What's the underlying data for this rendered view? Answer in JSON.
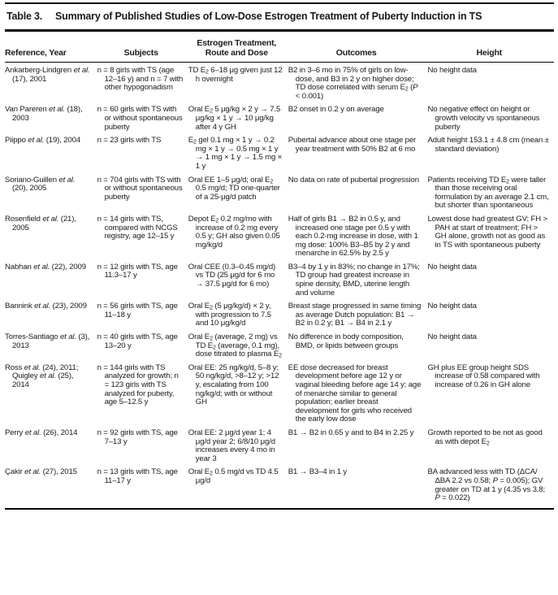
{
  "table": {
    "title_label": "Table 3.",
    "title_text": "Summary of Published Studies of Low-Dose Estrogen Treatment of Puberty Induction in TS",
    "columns": [
      "Reference, Year",
      "Subjects",
      "Estrogen Treatment, Route and Dose",
      "Outcomes",
      "Height"
    ],
    "rows": [
      {
        "reference": "Ankarberg-Lindgren <i>et al.</i> (17), 2001",
        "subjects": "n = 8 girls with TS (age 12–16 y) and n = 7 with other hypogonadism",
        "treatment": "TD E<sub>2</sub> 6–18 μg given just 12 h overnight",
        "outcomes": "B2 in 3–6 mo in 75% of girls on low-dose, and B3 in 2 y on higher dose; TD dose correlated with serum E<sub>2</sub> (<i>P</i> &lt; 0.001)",
        "height": "No height data"
      },
      {
        "reference": "Van Pareren <i>et al.</i> (18), 2003",
        "subjects": "n = 60 girls with TS with or without spontaneous puberty",
        "treatment": "Oral E<sub>2</sub> 5 μg/kg × 2 y → 7.5 μg/kg × 1 y → 10 μg/kg after 4 y GH",
        "outcomes": "B2 onset in 0.2 y on average",
        "height": "No negative effect on height or growth velocity vs spontaneous puberty"
      },
      {
        "reference": "Piippo <i>et al.</i> (19), 2004",
        "subjects": "n = 23 girls with TS",
        "treatment": "E<sub>2</sub> gel 0.1 mg × 1 y → 0.2 mg × 1 y → 0.5 mg × 1 y → 1 mg × 1 y → 1.5 mg × 1 y",
        "outcomes": "Pubertal advance about one stage per year treatment with 50% B2 at 6 mo",
        "height": "Adult height 153.1 ± 4.8 cm (mean ± standard deviation)"
      },
      {
        "reference": "Soriano-Guillen <i>et al.</i> (20), 2005",
        "subjects": "n = 704 girls with TS with or without spontaneous puberty",
        "treatment": "Oral EE 1–5 μg/d; oral E<sub>2</sub> 0.5 mg/d; TD one-quarter of a 25-μg/d patch",
        "outcomes": "No data on rate of pubertal progression",
        "height": "Patients receiving TD E<sub>2</sub> were taller than those receiving oral formulation by an average 2.1 cm, but shorter than spontaneous"
      },
      {
        "reference": "Rosenfield <i>et al.</i> (21), 2005",
        "subjects": "n = 14 girls with TS, compared with NCGS registry, age 12–15 y",
        "treatment": "Depot E<sub>2</sub> 0.2 mg/mo with increase of 0.2 mg every 0.5 y; GH also given 0.05 mg/kg/d",
        "outcomes": "Half of girls B1 → B2 in 0.5 y, and increased one stage per 0.5 y with each 0.2-mg increase in dose, with 1 mg dose: 100% B3–B5 by 2 y and menarche in 62.5% by 2.5 y",
        "height": "Lowest dose had greatest GV; FH &gt; PAH at start of treatment; FH &gt; GH alone, growth not as good as in TS with spontaneous puberty"
      },
      {
        "reference": "Nabhan <i>et al.</i> (22), 2009",
        "subjects": "n = 12 girls with TS, age 11.3–17 y",
        "treatment": "Oral CEE (0.3–0.45 mg/d) vs TD (25 μg/d for 6 mo → 37.5 μg/d for 6 mo)",
        "outcomes": "B3–4 by 1 y in 83%; no change in 17%; TD group had greatest increase in spine density, BMD, uterine length and volume",
        "height": "No height data"
      },
      {
        "reference": "Bannink <i>et al.</i> (23), 2009",
        "subjects": "n = 56 girls with TS, age 11–18 y",
        "treatment": "Oral E<sub>2</sub> (5 μg/kg/d) × 2 y, with progression to 7.5 and 10 μg/kg/d",
        "outcomes": "Breast stage progressed in same timing as average Dutch population: B1 → B2 in 0.2 y; B1 → B4 in 2.1 y",
        "height": "No height data"
      },
      {
        "reference": "Torres-Santiago <i>et al.</i> (3), 2013",
        "subjects": "n = 40 girls with TS, age 13–20 y",
        "treatment": "Oral E<sub>2</sub> (average, 2 mg) vs TD E<sub>2</sub> (average, 0.1 mg), dose titrated to plasma E<sub>2</sub>",
        "outcomes": "No difference in body composition, BMD, or lipids between groups",
        "height": "No height data"
      },
      {
        "reference": "Ross <i>et al.</i> (24), 2011; Quigley <i>et al.</i> (25), 2014",
        "subjects": "n = 144 girls with TS analyzed for growth; n = 123 girls with TS analyzed for puberty, age 5–12.5 y",
        "treatment": "Oral EE: 25 ng/kg/d, 5–8 y; 50 ng/kg/d, &gt;8–12 y; &gt;12 y, escalating from 100 ng/kg/d; with or without GH",
        "outcomes": "EE dose decreased for breast development before age 12 y or vaginal bleeding before age 14 y; age of menarche similar to general population; earlier breast development for girls who received the early low dose",
        "height": "GH plus EE group height SDS increase of 0.58 compared with increase of 0.26 in GH alone"
      },
      {
        "reference": "Perry <i>et al.</i> (26), 2014",
        "subjects": "n = 92 girls with TS, age 7–13 y",
        "treatment": "Oral EE: 2 μg/d year 1; 4 μg/d year 2; 6/8/10 μg/d increases every 4 mo in year 3",
        "outcomes": "B1 → B2 in 0.65 y and to B4 in 2.25 y",
        "height": "Growth reported to be not as good as with depot E<sub>2</sub>"
      },
      {
        "reference": "Çakir <i>et al.</i> (27), 2015",
        "subjects": "n = 13 girls with TS, age 11–17 y",
        "treatment": "Oral E<sub>2</sub> 0.5 mg/d vs TD 4.5 μg/d",
        "outcomes": "B1 → B3–4 in 1 y",
        "height": "BA advanced less with TD (ΔCA/ΔBA 2.2 vs 0.58; <i>P</i> = 0.005); GV greater on TD at 1 y (4.35 vs 3.8; <i>P</i> = 0.022)"
      }
    ]
  }
}
